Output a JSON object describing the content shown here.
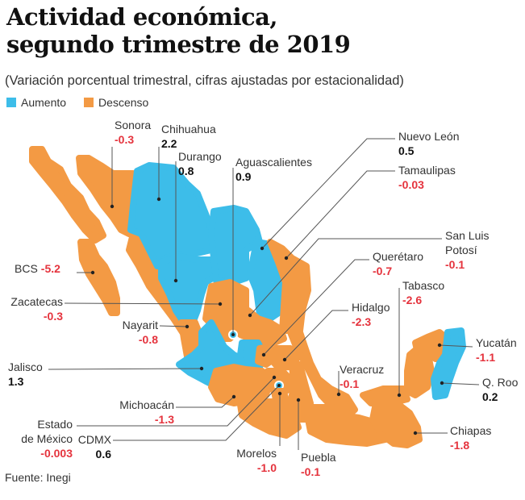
{
  "title_line1": "Actividad económica,",
  "title_line2": "segundo trimestre de 2019",
  "subtitle": "(Variación porcentual trimestral, cifras ajustadas por estacionalidad)",
  "legend": [
    {
      "label": "Aumento",
      "color": "#3dbde9"
    },
    {
      "label": "Descenso",
      "color": "#f39a44"
    }
  ],
  "colors": {
    "increase": "#3dbde9",
    "decrease": "#f39a44",
    "negative_text": "#e5333d"
  },
  "states": {
    "sonora": {
      "name": "Sonora",
      "value": "-0.3"
    },
    "chihuahua": {
      "name": "Chihuahua",
      "value": "2.2"
    },
    "durango": {
      "name": "Durango",
      "value": "0.8"
    },
    "aguascalientes": {
      "name": "Aguascalientes",
      "value": "0.9"
    },
    "nuevo_leon": {
      "name": "Nuevo León",
      "value": "0.5"
    },
    "tamaulipas": {
      "name": "Tamaulipas",
      "value": "-0.03"
    },
    "slp_1": {
      "name": "San Luis",
      "value": "-0.1"
    },
    "slp_2": {
      "name": "Potosí"
    },
    "queretaro": {
      "name": "Querétaro",
      "value": "-0.7"
    },
    "tabasco": {
      "name": "Tabasco",
      "value": "-2.6"
    },
    "hidalgo": {
      "name": "Hidalgo",
      "value": "-2.3"
    },
    "veracruz": {
      "name": "Veracruz",
      "value": "-0.1"
    },
    "yucatan": {
      "name": "Yucatán",
      "value": "-1.1"
    },
    "qroo": {
      "name": "Q. Roo",
      "value": "0.2"
    },
    "chiapas": {
      "name": "Chiapas",
      "value": "-1.8"
    },
    "puebla": {
      "name": "Puebla",
      "value": "-0.1"
    },
    "morelos": {
      "name": "Morelos",
      "value": "-1.0"
    },
    "cdmx": {
      "name": "CDMX",
      "value": "0.6"
    },
    "edomex_1": {
      "name": "Estado",
      "value": "-0.003"
    },
    "edomex_2": {
      "name": "de México"
    },
    "michoacan": {
      "name": "Michoacán",
      "value": "-1.3"
    },
    "jalisco": {
      "name": "Jalisco",
      "value": "1.3"
    },
    "nayarit": {
      "name": "Nayarit",
      "value": "-0.8"
    },
    "zacatecas": {
      "name": "Zacatecas",
      "value": "-0.3"
    },
    "bcs": {
      "name": "BCS",
      "value": "-5.2"
    }
  },
  "source": "Fuente: Inegi"
}
